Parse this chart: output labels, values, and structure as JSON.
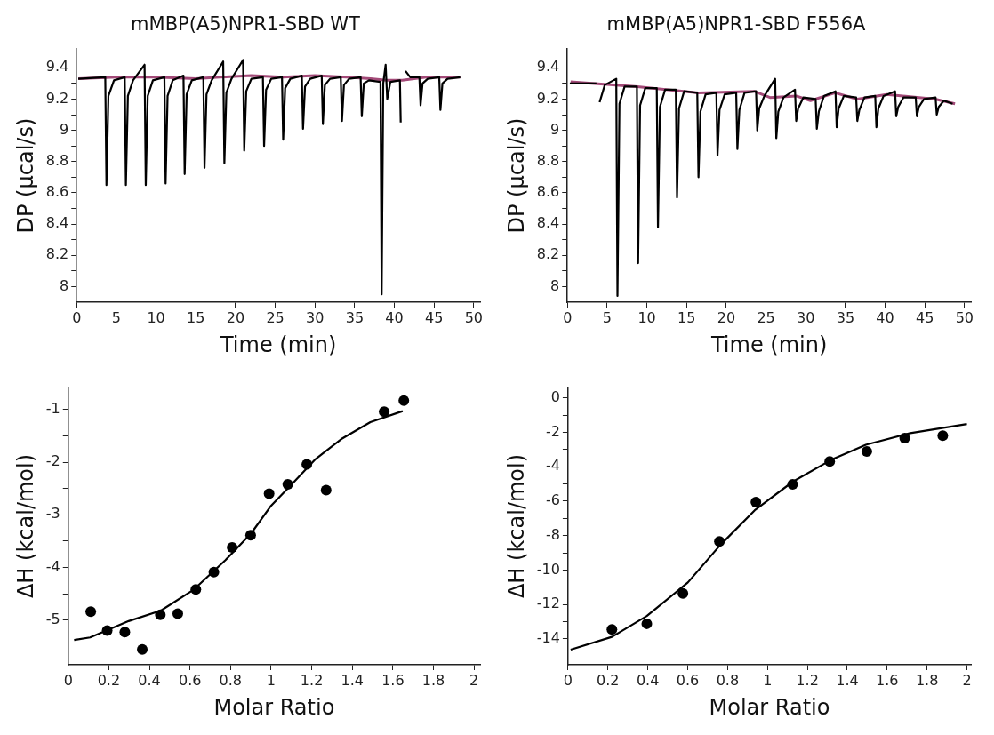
{
  "chart_data": [
    {
      "type": "line",
      "title": "mMBP(A5)NPR1-SBD WT",
      "xlabel": "Time (min)",
      "ylabel": "DP (µcal/s)",
      "xlim": [
        0,
        50.8
      ],
      "ylim": [
        7.9,
        9.52
      ],
      "xticks": [
        0,
        5,
        10,
        15,
        20,
        25,
        30,
        35,
        40,
        45,
        50
      ],
      "yticks": [
        8,
        {
          "value": 8.1,
          "label": null
        },
        8.2,
        {
          "value": 8.3,
          "label": null
        },
        8.4,
        {
          "value": 8.5,
          "label": null
        },
        8.6,
        {
          "value": 8.7,
          "label": null
        },
        8.8,
        {
          "value": 8.9,
          "label": null
        },
        9,
        {
          "value": 9.1,
          "label": null
        },
        9.2,
        {
          "value": 9.3,
          "label": null
        },
        9.4
      ],
      "grid": false,
      "line_style": "solid",
      "series": [
        {
          "color": "#000000",
          "x": [
            0.2,
            3.6,
            3.75,
            4.0,
            4.7,
            6.05,
            6.2,
            6.45,
            7.1,
            8.55,
            8.7,
            8.95,
            9.6,
            11.05,
            11.2,
            11.45,
            12.1,
            13.45,
            13.6,
            13.85,
            14.5,
            15.95,
            16.1,
            16.35,
            17.0,
            18.45,
            18.6,
            18.85,
            19.5,
            20.95,
            21.1,
            21.35,
            22.0,
            23.45,
            23.6,
            23.85,
            24.5,
            25.85,
            26.0,
            26.25,
            26.9,
            28.35,
            28.5,
            28.75,
            29.4,
            30.85,
            31.0,
            31.25,
            31.9,
            33.25,
            33.4,
            33.65,
            34.3,
            35.75,
            35.9,
            36.15,
            36.8,
            38.25,
            38.4,
            38.6,
            38.9,
            39.1,
            39.5,
            40.7,
            40.8,
            40.9,
            41.1,
            41.4,
            42.0,
            43.15,
            43.3,
            43.55,
            44.2,
            45.65,
            45.8,
            46.05,
            46.7,
            48.3
          ],
          "values": [
            9.33,
            9.34,
            8.65,
            9.22,
            9.32,
            9.34,
            8.65,
            9.22,
            9.32,
            9.42,
            8.65,
            9.22,
            9.32,
            9.34,
            8.66,
            9.22,
            9.32,
            9.35,
            8.72,
            9.23,
            9.32,
            9.34,
            8.76,
            9.23,
            9.32,
            9.44,
            8.79,
            9.24,
            9.33,
            9.45,
            8.87,
            9.25,
            9.33,
            9.34,
            8.9,
            9.26,
            9.33,
            9.34,
            8.94,
            9.27,
            9.33,
            9.35,
            9.01,
            9.28,
            9.33,
            9.35,
            9.04,
            9.29,
            9.33,
            9.34,
            9.06,
            9.29,
            9.33,
            9.34,
            9.09,
            9.3,
            9.32,
            9.31,
            7.95,
            9.3,
            9.42,
            9.2,
            9.31,
            9.32,
            9.05,
            null,
            null,
            9.38,
            9.34,
            9.34,
            9.16,
            9.3,
            9.33,
            9.34,
            9.13,
            9.3,
            9.33,
            9.34
          ]
        },
        {
          "color": "#a34a78",
          "x": [
            0.2,
            5,
            10,
            15,
            18,
            22,
            26,
            30,
            34,
            37,
            39,
            41,
            44,
            48.3
          ],
          "values": [
            9.33,
            9.34,
            9.34,
            9.33,
            9.34,
            9.35,
            9.34,
            9.35,
            9.34,
            9.33,
            9.32,
            9.32,
            9.34,
            9.34
          ]
        }
      ]
    },
    {
      "type": "line",
      "title": "mMBP(A5)NPR1-SBD F556A",
      "xlabel": "Time (min)",
      "ylabel": "DP (µcal/s)",
      "xlim": [
        0,
        50.8
      ],
      "ylim": [
        7.9,
        9.52
      ],
      "xticks": [
        0,
        5,
        10,
        15,
        20,
        25,
        30,
        35,
        40,
        45,
        50
      ],
      "yticks": [
        8,
        {
          "value": 8.1,
          "label": null
        },
        8.2,
        {
          "value": 8.3,
          "label": null
        },
        8.4,
        {
          "value": 8.5,
          "label": null
        },
        8.6,
        {
          "value": 8.7,
          "label": null
        },
        8.8,
        {
          "value": 8.9,
          "label": null
        },
        9,
        {
          "value": 9.1,
          "label": null
        },
        9.2,
        {
          "value": 9.3,
          "label": null
        },
        9.4
      ],
      "grid": false,
      "line_style": "solid",
      "series": [
        {
          "color": "#000000",
          "x": [
            0.3,
            3.65,
            3.8,
            4.05,
            4.7,
            6.15,
            6.3,
            6.55,
            7.2,
            8.75,
            8.9,
            9.15,
            9.8,
            11.25,
            11.4,
            11.65,
            12.3,
            13.65,
            13.8,
            14.05,
            14.7,
            16.35,
            16.5,
            16.75,
            17.4,
            18.75,
            18.9,
            19.15,
            19.8,
            21.25,
            21.4,
            21.65,
            22.3,
            23.75,
            23.9,
            24.15,
            24.8,
            26.15,
            26.3,
            26.55,
            27.2,
            28.65,
            28.8,
            29.05,
            29.7,
            31.25,
            31.4,
            31.65,
            32.3,
            33.75,
            33.9,
            34.15,
            34.8,
            36.35,
            36.5,
            36.75,
            37.4,
            38.75,
            38.9,
            39.15,
            39.8,
            41.25,
            41.4,
            41.65,
            42.3,
            43.85,
            44.0,
            44.25,
            44.9,
            46.35,
            46.5,
            46.75,
            47.4,
            48.5
          ],
          "values": [
            9.3,
            9.3,
            null,
            9.18,
            9.29,
            9.33,
            7.94,
            9.17,
            9.28,
            9.28,
            8.15,
            9.16,
            9.27,
            9.27,
            8.38,
            9.15,
            9.26,
            9.26,
            8.57,
            9.14,
            9.25,
            9.24,
            8.7,
            9.12,
            9.23,
            9.24,
            8.84,
            9.13,
            9.23,
            9.24,
            8.88,
            9.13,
            9.24,
            9.25,
            9.0,
            9.14,
            9.22,
            9.33,
            8.95,
            9.12,
            9.21,
            9.26,
            9.06,
            9.14,
            9.21,
            9.2,
            9.01,
            9.12,
            9.22,
            9.25,
            9.02,
            9.14,
            9.22,
            9.21,
            9.06,
            9.13,
            9.21,
            9.22,
            9.02,
            9.14,
            9.22,
            9.25,
            9.09,
            9.15,
            9.21,
            9.21,
            9.09,
            9.15,
            9.2,
            9.21,
            9.1,
            9.15,
            9.19,
            9.17
          ]
        },
        {
          "color": "#a34a78",
          "x": [
            0.4,
            8.8,
            16.5,
            23.5,
            25.5,
            28.8,
            30.6,
            33.7,
            36.5,
            40.2,
            46.3,
            48.8
          ],
          "values": [
            9.31,
            9.28,
            9.24,
            9.25,
            9.21,
            9.22,
            9.19,
            9.24,
            9.2,
            9.23,
            9.2,
            9.17
          ]
        }
      ]
    },
    {
      "type": "scatter",
      "xlabel": "Molar Ratio",
      "ylabel": "ΔH (kcal/mol)",
      "xlim": [
        0,
        2.03
      ],
      "ylim": [
        -5.85,
        -0.58
      ],
      "xticks": [
        0,
        0.2,
        0.4,
        0.6,
        0.8,
        1,
        1.2,
        1.4,
        1.6,
        1.8,
        2
      ],
      "yticks": [
        -5,
        {
          "value": -4.5,
          "label": null
        },
        -4,
        {
          "value": -3.5,
          "label": null
        },
        -3,
        {
          "value": -2.5,
          "label": null
        },
        -2,
        {
          "value": -1.5,
          "label": null
        },
        -1
      ],
      "grid": false,
      "series": [
        {
          "marker": "circle",
          "color": "#000000",
          "x": [
            0.111,
            0.192,
            0.279,
            0.365,
            0.454,
            0.54,
            0.629,
            0.718,
            0.808,
            0.899,
            0.99,
            1.082,
            1.176,
            1.271,
            1.557,
            1.654
          ],
          "values": [
            -4.84,
            -5.2,
            -5.23,
            -5.56,
            -4.9,
            -4.88,
            -4.42,
            -4.09,
            -3.62,
            -3.39,
            -2.6,
            -2.42,
            -2.04,
            -2.53,
            -1.04,
            -0.83
          ]
        },
        {
          "type": "line",
          "color": "#000000",
          "x": [
            0.029,
            0.108,
            0.298,
            0.457,
            0.616,
            0.775,
            0.902,
            0.997,
            1.092,
            1.219,
            1.346,
            1.489,
            1.648
          ],
          "values": [
            -5.38,
            -5.33,
            -5.02,
            -4.82,
            -4.43,
            -3.86,
            -3.35,
            -2.84,
            -2.46,
            -1.94,
            -1.56,
            -1.24,
            -1.03
          ]
        }
      ]
    },
    {
      "type": "scatter",
      "xlabel": "Molar Ratio",
      "ylabel": "ΔH (kcal/mol)",
      "xlim": [
        0,
        2.02
      ],
      "ylim": [
        -15.5,
        0.6
      ],
      "xticks": [
        0,
        0.2,
        0.4,
        0.6,
        0.8,
        1,
        1.2,
        1.4,
        1.6,
        1.8,
        2
      ],
      "yticks": [
        -14,
        {
          "value": -13,
          "label": null
        },
        -12,
        {
          "value": -11,
          "label": null
        },
        -10,
        {
          "value": -9,
          "label": null
        },
        -8,
        {
          "value": -7,
          "label": null
        },
        -6,
        {
          "value": -5,
          "label": null
        },
        -4,
        {
          "value": -3,
          "label": null
        },
        -2,
        {
          "value": -1,
          "label": null
        },
        0
      ],
      "grid": false,
      "series": [
        {
          "marker": "circle",
          "color": "#000000",
          "x": [
            0.22,
            0.395,
            0.576,
            0.759,
            0.942,
            1.126,
            1.312,
            1.498,
            1.688,
            1.879
          ],
          "values": [
            -13.45,
            -13.12,
            -11.36,
            -8.34,
            -6.06,
            -5.03,
            -3.7,
            -3.12,
            -2.34,
            -2.2
          ]
        },
        {
          "type": "line",
          "color": "#000000",
          "x": [
            0.013,
            0.22,
            0.395,
            0.601,
            0.761,
            0.936,
            1.127,
            1.318,
            1.493,
            1.716,
            2.0
          ],
          "values": [
            -14.62,
            -13.88,
            -12.67,
            -10.72,
            -8.58,
            -6.53,
            -4.87,
            -3.61,
            -2.73,
            -2.05,
            -1.52
          ]
        }
      ]
    }
  ]
}
